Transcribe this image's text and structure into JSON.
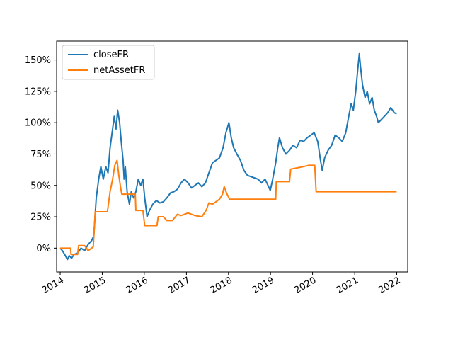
{
  "chart_data": {
    "type": "line",
    "title": "",
    "xlabel": "",
    "ylabel": "",
    "x_ticks": [
      "2014",
      "2015",
      "2016",
      "2017",
      "2018",
      "2019",
      "2020",
      "2021",
      "2022"
    ],
    "y_ticks": [
      "0%",
      "25%",
      "50%",
      "75%",
      "100%",
      "125%",
      "150%"
    ],
    "xlim": [
      "2013-12-01",
      "2022-04-06"
    ],
    "ylim": [
      -0.19,
      1.65
    ],
    "grid": false,
    "legend_position": "top-left",
    "series": [
      {
        "name": "closeFR",
        "color": "#1f77b4",
        "points": [
          [
            "2014-01-01",
            0.0
          ],
          [
            "2014-01-20",
            -0.02
          ],
          [
            "2014-02-15",
            -0.06
          ],
          [
            "2014-03-05",
            -0.09
          ],
          [
            "2014-03-20",
            -0.06
          ],
          [
            "2014-04-10",
            -0.08
          ],
          [
            "2014-05-01",
            -0.05
          ],
          [
            "2014-06-01",
            -0.04
          ],
          [
            "2014-07-01",
            0.0
          ],
          [
            "2014-08-01",
            -0.02
          ],
          [
            "2014-09-01",
            0.03
          ],
          [
            "2014-10-01",
            0.06
          ],
          [
            "2014-10-20",
            0.1
          ],
          [
            "2014-11-10",
            0.4
          ],
          [
            "2014-12-01",
            0.55
          ],
          [
            "2014-12-20",
            0.65
          ],
          [
            "2015-01-10",
            0.55
          ],
          [
            "2015-02-01",
            0.65
          ],
          [
            "2015-02-20",
            0.6
          ],
          [
            "2015-03-10",
            0.8
          ],
          [
            "2015-04-01",
            0.95
          ],
          [
            "2015-04-15",
            1.05
          ],
          [
            "2015-05-01",
            0.95
          ],
          [
            "2015-05-15",
            1.1
          ],
          [
            "2015-06-01",
            1.0
          ],
          [
            "2015-06-15",
            0.85
          ],
          [
            "2015-07-01",
            0.7
          ],
          [
            "2015-07-10",
            0.55
          ],
          [
            "2015-07-20",
            0.65
          ],
          [
            "2015-08-05",
            0.45
          ],
          [
            "2015-08-25",
            0.35
          ],
          [
            "2015-09-10",
            0.45
          ],
          [
            "2015-10-01",
            0.4
          ],
          [
            "2015-10-20",
            0.45
          ],
          [
            "2015-11-10",
            0.55
          ],
          [
            "2015-12-01",
            0.5
          ],
          [
            "2015-12-20",
            0.55
          ],
          [
            "2016-01-05",
            0.4
          ],
          [
            "2016-01-25",
            0.25
          ],
          [
            "2016-02-15",
            0.3
          ],
          [
            "2016-03-15",
            0.35
          ],
          [
            "2016-04-15",
            0.38
          ],
          [
            "2016-05-15",
            0.36
          ],
          [
            "2016-06-15",
            0.37
          ],
          [
            "2016-07-15",
            0.4
          ],
          [
            "2016-08-15",
            0.44
          ],
          [
            "2016-09-15",
            0.45
          ],
          [
            "2016-10-15",
            0.47
          ],
          [
            "2016-11-15",
            0.52
          ],
          [
            "2016-12-15",
            0.55
          ],
          [
            "2017-01-15",
            0.52
          ],
          [
            "2017-02-15",
            0.48
          ],
          [
            "2017-03-15",
            0.5
          ],
          [
            "2017-04-15",
            0.52
          ],
          [
            "2017-05-15",
            0.49
          ],
          [
            "2017-06-15",
            0.52
          ],
          [
            "2017-07-15",
            0.6
          ],
          [
            "2017-08-15",
            0.68
          ],
          [
            "2017-09-15",
            0.7
          ],
          [
            "2017-10-15",
            0.72
          ],
          [
            "2017-11-15",
            0.8
          ],
          [
            "2017-12-10",
            0.92
          ],
          [
            "2018-01-05",
            1.0
          ],
          [
            "2018-01-25",
            0.88
          ],
          [
            "2018-02-15",
            0.8
          ],
          [
            "2018-03-15",
            0.75
          ],
          [
            "2018-04-15",
            0.7
          ],
          [
            "2018-05-15",
            0.62
          ],
          [
            "2018-06-15",
            0.58
          ],
          [
            "2018-07-15",
            0.57
          ],
          [
            "2018-08-15",
            0.56
          ],
          [
            "2018-09-15",
            0.55
          ],
          [
            "2018-10-15",
            0.52
          ],
          [
            "2018-11-15",
            0.55
          ],
          [
            "2018-12-10",
            0.5
          ],
          [
            "2018-12-30",
            0.46
          ],
          [
            "2019-01-20",
            0.55
          ],
          [
            "2019-02-15",
            0.68
          ],
          [
            "2019-03-05",
            0.8
          ],
          [
            "2019-03-20",
            0.88
          ],
          [
            "2019-04-15",
            0.8
          ],
          [
            "2019-05-15",
            0.75
          ],
          [
            "2019-06-15",
            0.78
          ],
          [
            "2019-07-15",
            0.82
          ],
          [
            "2019-08-15",
            0.8
          ],
          [
            "2019-09-15",
            0.86
          ],
          [
            "2019-10-15",
            0.85
          ],
          [
            "2019-11-15",
            0.88
          ],
          [
            "2019-12-15",
            0.9
          ],
          [
            "2020-01-15",
            0.92
          ],
          [
            "2020-02-15",
            0.85
          ],
          [
            "2020-03-10",
            0.7
          ],
          [
            "2020-03-25",
            0.62
          ],
          [
            "2020-04-15",
            0.72
          ],
          [
            "2020-05-15",
            0.78
          ],
          [
            "2020-06-15",
            0.82
          ],
          [
            "2020-07-15",
            0.9
          ],
          [
            "2020-08-15",
            0.88
          ],
          [
            "2020-09-15",
            0.85
          ],
          [
            "2020-10-15",
            0.92
          ],
          [
            "2020-11-10",
            1.05
          ],
          [
            "2020-12-01",
            1.15
          ],
          [
            "2020-12-20",
            1.1
          ],
          [
            "2021-01-10",
            1.25
          ],
          [
            "2021-01-25",
            1.4
          ],
          [
            "2021-02-10",
            1.55
          ],
          [
            "2021-02-20",
            1.45
          ],
          [
            "2021-03-10",
            1.3
          ],
          [
            "2021-04-01",
            1.2
          ],
          [
            "2021-04-20",
            1.25
          ],
          [
            "2021-05-10",
            1.15
          ],
          [
            "2021-06-01",
            1.2
          ],
          [
            "2021-06-20",
            1.1
          ],
          [
            "2021-07-10",
            1.05
          ],
          [
            "2021-07-25",
            1.0
          ],
          [
            "2021-08-15",
            1.02
          ],
          [
            "2021-09-15",
            1.05
          ],
          [
            "2021-10-15",
            1.08
          ],
          [
            "2021-11-10",
            1.12
          ],
          [
            "2021-12-10",
            1.08
          ],
          [
            "2021-12-31",
            1.07
          ]
        ]
      },
      {
        "name": "netAssetFR",
        "color": "#ff7f0e",
        "points": [
          [
            "2014-01-01",
            0.0
          ],
          [
            "2014-04-01",
            0.0
          ],
          [
            "2014-04-05",
            -0.05
          ],
          [
            "2014-06-01",
            -0.05
          ],
          [
            "2014-06-10",
            0.02
          ],
          [
            "2014-08-01",
            0.02
          ],
          [
            "2014-09-01",
            -0.02
          ],
          [
            "2014-10-15",
            0.01
          ],
          [
            "2014-11-01",
            0.29
          ],
          [
            "2015-02-15",
            0.29
          ],
          [
            "2015-03-10",
            0.45
          ],
          [
            "2015-04-01",
            0.55
          ],
          [
            "2015-04-20",
            0.66
          ],
          [
            "2015-05-10",
            0.7
          ],
          [
            "2015-05-25",
            0.58
          ],
          [
            "2015-06-10",
            0.48
          ],
          [
            "2015-06-20",
            0.43
          ],
          [
            "2015-10-15",
            0.43
          ],
          [
            "2015-10-20",
            0.3
          ],
          [
            "2015-12-20",
            0.3
          ],
          [
            "2016-01-05",
            0.18
          ],
          [
            "2016-04-20",
            0.18
          ],
          [
            "2016-05-01",
            0.25
          ],
          [
            "2016-06-15",
            0.25
          ],
          [
            "2016-07-15",
            0.22
          ],
          [
            "2016-09-01",
            0.22
          ],
          [
            "2016-10-15",
            0.27
          ],
          [
            "2016-11-15",
            0.26
          ],
          [
            "2017-01-15",
            0.28
          ],
          [
            "2017-03-15",
            0.26
          ],
          [
            "2017-05-15",
            0.25
          ],
          [
            "2017-06-20",
            0.3
          ],
          [
            "2017-07-15",
            0.36
          ],
          [
            "2017-08-15",
            0.35
          ],
          [
            "2017-09-15",
            0.37
          ],
          [
            "2017-10-15",
            0.39
          ],
          [
            "2017-11-10",
            0.43
          ],
          [
            "2017-11-25",
            0.49
          ],
          [
            "2017-12-15",
            0.44
          ],
          [
            "2018-01-10",
            0.39
          ],
          [
            "2019-02-15",
            0.39
          ],
          [
            "2019-02-20",
            0.53
          ],
          [
            "2019-06-15",
            0.53
          ],
          [
            "2019-06-25",
            0.63
          ],
          [
            "2019-10-15",
            0.65
          ],
          [
            "2019-12-01",
            0.66
          ],
          [
            "2020-01-20",
            0.66
          ],
          [
            "2020-02-01",
            0.45
          ],
          [
            "2021-12-31",
            0.45
          ]
        ]
      }
    ]
  }
}
